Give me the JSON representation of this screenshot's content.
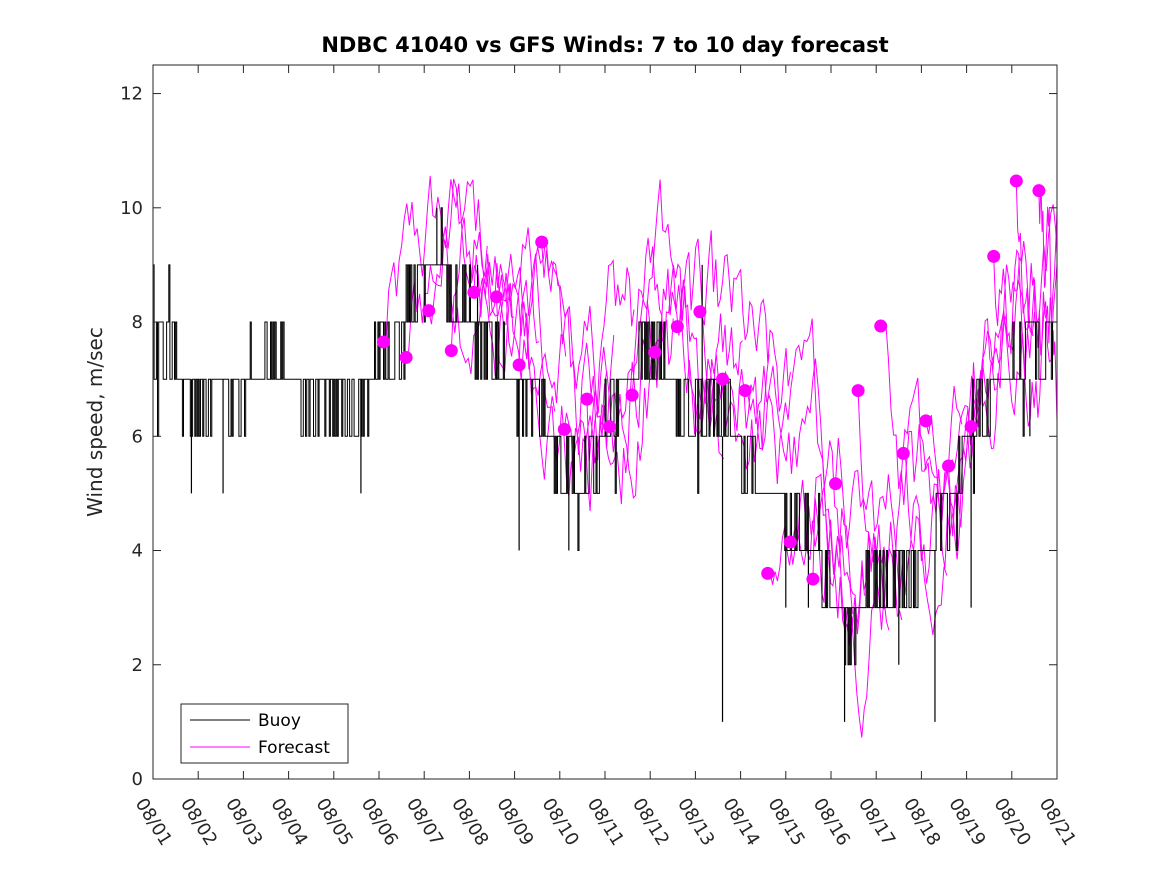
{
  "chart_data": {
    "type": "line",
    "title": "NDBC 41040 vs GFS Winds: 7 to 10 day forecast",
    "xlabel": "",
    "ylabel": "Wind speed, m/sec",
    "xlim": [
      0,
      20
    ],
    "ylim": [
      0,
      12.5
    ],
    "yticks": [
      0,
      2,
      4,
      6,
      8,
      10,
      12
    ],
    "xtick_labels": [
      "08/01",
      "08/02",
      "08/03",
      "08/04",
      "08/05",
      "08/06",
      "08/07",
      "08/08",
      "08/09",
      "08/10",
      "08/11",
      "08/12",
      "08/13",
      "08/14",
      "08/15",
      "08/16",
      "08/17",
      "08/18",
      "08/19",
      "08/20",
      "08/21"
    ],
    "legend": {
      "placement": "bottom-left",
      "entries": [
        "Buoy",
        "Forecast"
      ]
    },
    "colors": {
      "buoy": "#000000",
      "forecast": "#ff00ff",
      "axis": "#262626"
    },
    "buoy": {
      "name": "Buoy",
      "anchors": [
        [
          0.0,
          7.5
        ],
        [
          0.4,
          7.5
        ],
        [
          0.8,
          6.6
        ],
        [
          1.2,
          6.3
        ],
        [
          1.5,
          7.0
        ],
        [
          1.8,
          6.6
        ],
        [
          2.2,
          7.3
        ],
        [
          2.6,
          7.5
        ],
        [
          3.0,
          7.0
        ],
        [
          3.5,
          6.6
        ],
        [
          4.0,
          6.8
        ],
        [
          4.5,
          6.5
        ],
        [
          5.0,
          7.2
        ],
        [
          5.5,
          7.8
        ],
        [
          5.9,
          8.8
        ],
        [
          6.2,
          9.2
        ],
        [
          6.5,
          8.6
        ],
        [
          6.9,
          8.4
        ],
        [
          7.2,
          7.6
        ],
        [
          7.7,
          7.2
        ],
        [
          8.2,
          6.8
        ],
        [
          8.6,
          6.6
        ],
        [
          9.0,
          5.3
        ],
        [
          9.5,
          5.2
        ],
        [
          10.0,
          6.2
        ],
        [
          10.5,
          7.0
        ],
        [
          10.8,
          7.6
        ],
        [
          11.3,
          7.3
        ],
        [
          11.8,
          6.4
        ],
        [
          12.2,
          6.2
        ],
        [
          12.7,
          6.5
        ],
        [
          13.2,
          5.3
        ],
        [
          13.7,
          4.8
        ],
        [
          14.2,
          4.3
        ],
        [
          14.7,
          4.2
        ],
        [
          15.0,
          3.3
        ],
        [
          15.5,
          2.6
        ],
        [
          15.9,
          3.4
        ],
        [
          16.3,
          3.3
        ],
        [
          16.8,
          3.6
        ],
        [
          17.2,
          4.3
        ],
        [
          17.6,
          4.6
        ],
        [
          18.0,
          6.0
        ],
        [
          18.4,
          6.8
        ],
        [
          18.8,
          7.0
        ],
        [
          19.3,
          7.6
        ],
        [
          19.6,
          7.2
        ],
        [
          19.9,
          8.0
        ]
      ],
      "spikes": [
        [
          0.85,
          5
        ],
        [
          1.55,
          5
        ],
        [
          4.6,
          5
        ],
        [
          6.28,
          10
        ],
        [
          7.18,
          9
        ],
        [
          8.1,
          4
        ],
        [
          9.2,
          4
        ],
        [
          12.15,
          9
        ],
        [
          12.6,
          1
        ],
        [
          14.0,
          3
        ],
        [
          14.5,
          3
        ],
        [
          15.3,
          1
        ],
        [
          16.5,
          2
        ],
        [
          17.3,
          1
        ],
        [
          18.1,
          3
        ],
        [
          19.4,
          6
        ]
      ]
    },
    "forecast": {
      "name": "Forecast",
      "markers": [
        {
          "x": 5.1,
          "y": 7.65
        },
        {
          "x": 5.6,
          "y": 7.38
        },
        {
          "x": 6.1,
          "y": 8.2
        },
        {
          "x": 6.6,
          "y": 7.5
        },
        {
          "x": 7.1,
          "y": 8.52
        },
        {
          "x": 7.6,
          "y": 8.44
        },
        {
          "x": 8.1,
          "y": 7.25
        },
        {
          "x": 8.6,
          "y": 9.4
        },
        {
          "x": 9.1,
          "y": 6.12
        },
        {
          "x": 9.6,
          "y": 6.65
        },
        {
          "x": 10.1,
          "y": 6.17
        },
        {
          "x": 10.6,
          "y": 6.72
        },
        {
          "x": 11.1,
          "y": 7.47
        },
        {
          "x": 11.6,
          "y": 7.92
        },
        {
          "x": 12.1,
          "y": 8.18
        },
        {
          "x": 12.6,
          "y": 7.0
        },
        {
          "x": 13.1,
          "y": 6.8
        },
        {
          "x": 13.6,
          "y": 3.6
        },
        {
          "x": 14.1,
          "y": 4.15
        },
        {
          "x": 14.6,
          "y": 3.5
        },
        {
          "x": 15.1,
          "y": 5.17
        },
        {
          "x": 15.6,
          "y": 6.8
        },
        {
          "x": 16.1,
          "y": 7.93
        },
        {
          "x": 16.6,
          "y": 5.7
        },
        {
          "x": 17.1,
          "y": 6.27
        },
        {
          "x": 17.6,
          "y": 5.48
        },
        {
          "x": 18.1,
          "y": 6.17
        },
        {
          "x": 18.6,
          "y": 9.15
        },
        {
          "x": 19.1,
          "y": 10.47
        },
        {
          "x": 19.6,
          "y": 10.3
        }
      ]
    }
  }
}
